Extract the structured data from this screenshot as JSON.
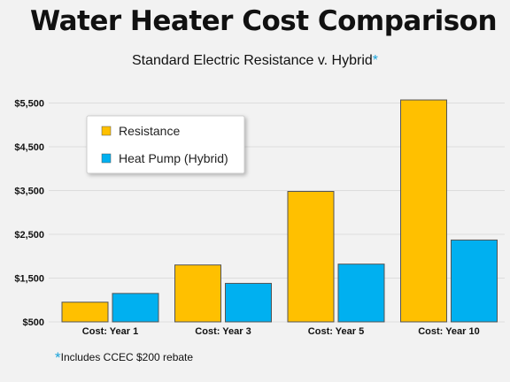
{
  "header": {
    "title": "Water Heater Cost Comparison",
    "subtitle": "Standard Electric Resistance v. Hybrid",
    "subtitle_marker": "*"
  },
  "footnote": {
    "marker": "*",
    "text": "Includes CCEC $200 rebate"
  },
  "colors": {
    "resistance": "#ffc000",
    "heat_pump": "#00b0f0",
    "bar_stroke": "#555555",
    "grid": "#dddddd",
    "marker": "#1aa3d9"
  },
  "chart_data": {
    "type": "bar",
    "title": "Water Heater Cost Comparison",
    "subtitle": "Standard Electric Resistance v. Hybrid",
    "categories": [
      "Cost: Year 1",
      "Cost: Year 3",
      "Cost: Year 5",
      "Cost: Year 10"
    ],
    "series": [
      {
        "name": "Resistance",
        "values": [
          950,
          1800,
          3480,
          5570
        ],
        "color": "#ffc000"
      },
      {
        "name": "Heat Pump (Hybrid)",
        "values": [
          1150,
          1380,
          1820,
          2370
        ],
        "color": "#00b0f0"
      }
    ],
    "ylim": [
      500,
      6000
    ],
    "yticks": [
      500,
      1500,
      2500,
      3500,
      4500,
      5500
    ],
    "ytick_labels": [
      "$500",
      "$1,500",
      "$2,500",
      "$3,500",
      "$4,500",
      "$5,500"
    ],
    "xlabel": "",
    "ylabel": "",
    "grid": true,
    "legend": "top-left"
  }
}
